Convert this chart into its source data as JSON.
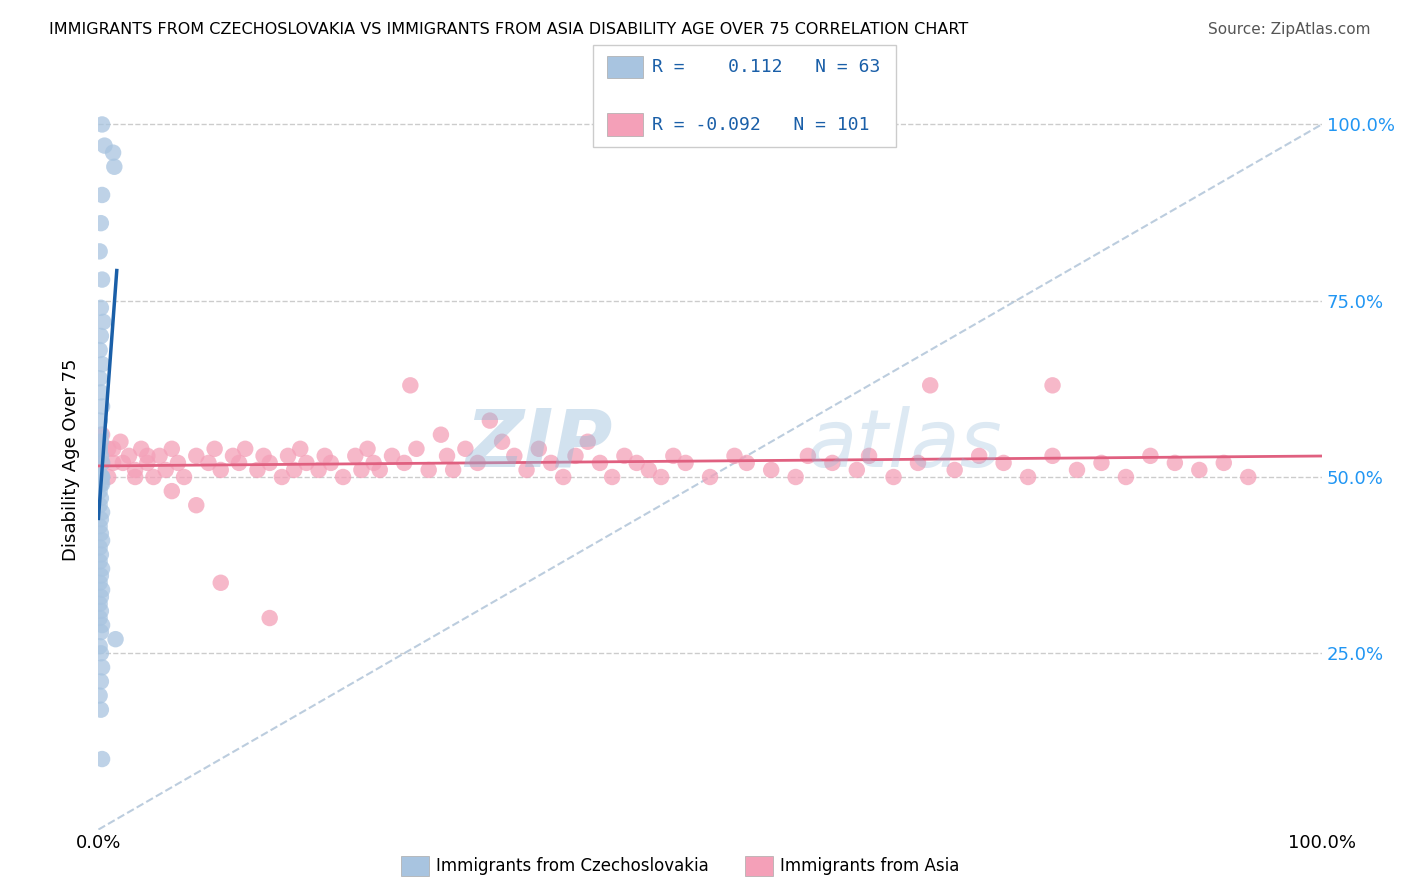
{
  "title": "IMMIGRANTS FROM CZECHOSLOVAKIA VS IMMIGRANTS FROM ASIA DISABILITY AGE OVER 75 CORRELATION CHART",
  "source": "Source: ZipAtlas.com",
  "ylabel": "Disability Age Over 75",
  "legend_blue_r": "0.112",
  "legend_blue_n": "63",
  "legend_pink_r": "-0.092",
  "legend_pink_n": "101",
  "legend_blue_label": "Immigrants from Czechoslovakia",
  "legend_pink_label": "Immigrants from Asia",
  "blue_color": "#a8c4e0",
  "pink_color": "#f4a0b8",
  "blue_line_color": "#1a5fa8",
  "pink_line_color": "#e06080",
  "watermark_color": "#c8dff0",
  "watermark_alpha": 0.5,
  "blue_scatter_x": [
    0.003,
    0.005,
    0.012,
    0.013,
    0.003,
    0.002,
    0.001,
    0.003,
    0.002,
    0.004,
    0.002,
    0.001,
    0.003,
    0.001,
    0.002,
    0.003,
    0.001,
    0.002,
    0.001,
    0.003,
    0.002,
    0.001,
    0.002,
    0.001,
    0.003,
    0.002,
    0.001,
    0.002,
    0.001,
    0.003,
    0.002,
    0.001,
    0.002,
    0.003,
    0.001,
    0.002,
    0.001,
    0.003,
    0.002,
    0.001,
    0.002,
    0.003,
    0.001,
    0.002,
    0.001,
    0.003,
    0.002,
    0.001,
    0.003,
    0.002,
    0.001,
    0.002,
    0.001,
    0.003,
    0.002,
    0.014,
    0.001,
    0.002,
    0.003,
    0.002,
    0.001,
    0.002,
    0.003
  ],
  "blue_scatter_y": [
    1.0,
    0.97,
    0.96,
    0.94,
    0.9,
    0.86,
    0.82,
    0.78,
    0.74,
    0.72,
    0.7,
    0.68,
    0.66,
    0.64,
    0.62,
    0.6,
    0.58,
    0.56,
    0.54,
    0.52,
    0.53,
    0.54,
    0.55,
    0.5,
    0.5,
    0.5,
    0.5,
    0.5,
    0.5,
    0.5,
    0.5,
    0.5,
    0.49,
    0.49,
    0.48,
    0.47,
    0.46,
    0.45,
    0.44,
    0.43,
    0.42,
    0.41,
    0.4,
    0.39,
    0.38,
    0.37,
    0.36,
    0.35,
    0.34,
    0.33,
    0.32,
    0.31,
    0.3,
    0.29,
    0.28,
    0.27,
    0.26,
    0.25,
    0.23,
    0.21,
    0.19,
    0.17,
    0.1
  ],
  "pink_scatter_x": [
    0.003,
    0.008,
    0.012,
    0.018,
    0.025,
    0.03,
    0.035,
    0.04,
    0.045,
    0.05,
    0.055,
    0.06,
    0.065,
    0.07,
    0.08,
    0.09,
    0.095,
    0.1,
    0.11,
    0.115,
    0.12,
    0.13,
    0.135,
    0.14,
    0.15,
    0.155,
    0.16,
    0.165,
    0.17,
    0.18,
    0.185,
    0.19,
    0.2,
    0.21,
    0.215,
    0.22,
    0.225,
    0.23,
    0.24,
    0.25,
    0.255,
    0.26,
    0.27,
    0.28,
    0.285,
    0.29,
    0.3,
    0.31,
    0.32,
    0.33,
    0.34,
    0.35,
    0.36,
    0.37,
    0.38,
    0.39,
    0.4,
    0.41,
    0.42,
    0.43,
    0.44,
    0.45,
    0.46,
    0.47,
    0.48,
    0.5,
    0.52,
    0.53,
    0.55,
    0.57,
    0.58,
    0.6,
    0.62,
    0.63,
    0.65,
    0.67,
    0.68,
    0.7,
    0.72,
    0.74,
    0.76,
    0.78,
    0.8,
    0.82,
    0.84,
    0.86,
    0.88,
    0.9,
    0.92,
    0.94,
    0.003,
    0.008,
    0.012,
    0.02,
    0.03,
    0.04,
    0.06,
    0.08,
    0.1,
    0.14,
    0.78
  ],
  "pink_scatter_y": [
    0.56,
    0.54,
    0.52,
    0.55,
    0.53,
    0.51,
    0.54,
    0.52,
    0.5,
    0.53,
    0.51,
    0.54,
    0.52,
    0.5,
    0.53,
    0.52,
    0.54,
    0.51,
    0.53,
    0.52,
    0.54,
    0.51,
    0.53,
    0.52,
    0.5,
    0.53,
    0.51,
    0.54,
    0.52,
    0.51,
    0.53,
    0.52,
    0.5,
    0.53,
    0.51,
    0.54,
    0.52,
    0.51,
    0.53,
    0.52,
    0.63,
    0.54,
    0.51,
    0.56,
    0.53,
    0.51,
    0.54,
    0.52,
    0.58,
    0.55,
    0.53,
    0.51,
    0.54,
    0.52,
    0.5,
    0.53,
    0.55,
    0.52,
    0.5,
    0.53,
    0.52,
    0.51,
    0.5,
    0.53,
    0.52,
    0.5,
    0.53,
    0.52,
    0.51,
    0.5,
    0.53,
    0.52,
    0.51,
    0.53,
    0.5,
    0.52,
    0.63,
    0.51,
    0.53,
    0.52,
    0.5,
    0.53,
    0.51,
    0.52,
    0.5,
    0.53,
    0.52,
    0.51,
    0.52,
    0.5,
    0.52,
    0.5,
    0.54,
    0.52,
    0.5,
    0.53,
    0.48,
    0.46,
    0.35,
    0.3,
    0.63
  ]
}
